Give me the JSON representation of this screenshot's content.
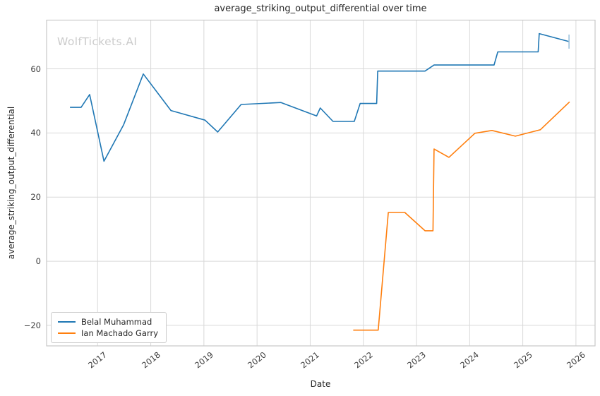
{
  "chart_data": {
    "type": "line",
    "title": "average_striking_output_differential over time",
    "xlabel": "Date",
    "ylabel": "average_striking_output_differential",
    "watermark": "WolfTickets.AI",
    "grid": true,
    "legend_position": "lower left",
    "xlim": [
      2016.04,
      2026.36
    ],
    "ylim": [
      -26.4,
      75.2
    ],
    "x_ticks": [
      2017,
      2018,
      2019,
      2020,
      2021,
      2022,
      2023,
      2024,
      2025,
      2026
    ],
    "x_tick_labels": [
      "2017",
      "2018",
      "2019",
      "2020",
      "2021",
      "2022",
      "2023",
      "2024",
      "2025",
      "2026"
    ],
    "y_ticks": [
      -20,
      0,
      20,
      40,
      60
    ],
    "y_tick_labels": [
      "−20",
      "0",
      "20",
      "40",
      "60"
    ],
    "colors": {
      "grid": "#d9d9d9",
      "spine": "#c9c9c9",
      "title_text": "#262626",
      "tick_text": "#3d3d3d",
      "watermark_text": "#cbcbcb",
      "series_blue": "#1f77b4",
      "series_orange": "#ff7f0e"
    },
    "series": [
      {
        "name": "Belal Muhammad",
        "color": "#1f77b4",
        "points": [
          [
            2016.48,
            48.0
          ],
          [
            2016.69,
            48.0
          ],
          [
            2016.85,
            52.0
          ],
          [
            2017.12,
            31.2
          ],
          [
            2017.49,
            42.6
          ],
          [
            2017.86,
            58.4
          ],
          [
            2018.38,
            47.0
          ],
          [
            2019.02,
            44.0
          ],
          [
            2019.26,
            40.3
          ],
          [
            2019.7,
            48.9
          ],
          [
            2020.45,
            49.5
          ],
          [
            2021.12,
            45.3
          ],
          [
            2021.19,
            47.8
          ],
          [
            2021.43,
            43.6
          ],
          [
            2021.83,
            43.6
          ],
          [
            2021.94,
            49.2
          ],
          [
            2022.25,
            49.2
          ],
          [
            2022.27,
            59.3
          ],
          [
            2023.16,
            59.3
          ],
          [
            2023.33,
            61.2
          ],
          [
            2024.46,
            61.2
          ],
          [
            2024.53,
            65.3
          ],
          [
            2025.29,
            65.3
          ],
          [
            2025.31,
            71.0
          ],
          [
            2025.87,
            68.5
          ]
        ]
      },
      {
        "name": "Ian Machado Garry",
        "color": "#ff7f0e",
        "points": [
          [
            2021.81,
            -21.5
          ],
          [
            2022.28,
            -21.5
          ],
          [
            2022.47,
            15.2
          ],
          [
            2022.78,
            15.2
          ],
          [
            2023.16,
            9.5
          ],
          [
            2023.31,
            9.5
          ],
          [
            2023.33,
            35.0
          ],
          [
            2023.61,
            32.4
          ],
          [
            2024.1,
            39.9
          ],
          [
            2024.42,
            40.8
          ],
          [
            2024.86,
            39.0
          ],
          [
            2025.33,
            41.0
          ],
          [
            2025.88,
            49.7
          ]
        ]
      }
    ],
    "end_marker": {
      "series": "Belal Muhammad",
      "x": 2025.87,
      "y_center": 68.5,
      "y_half_span": 2.2,
      "color": "#9ec3dd"
    }
  }
}
